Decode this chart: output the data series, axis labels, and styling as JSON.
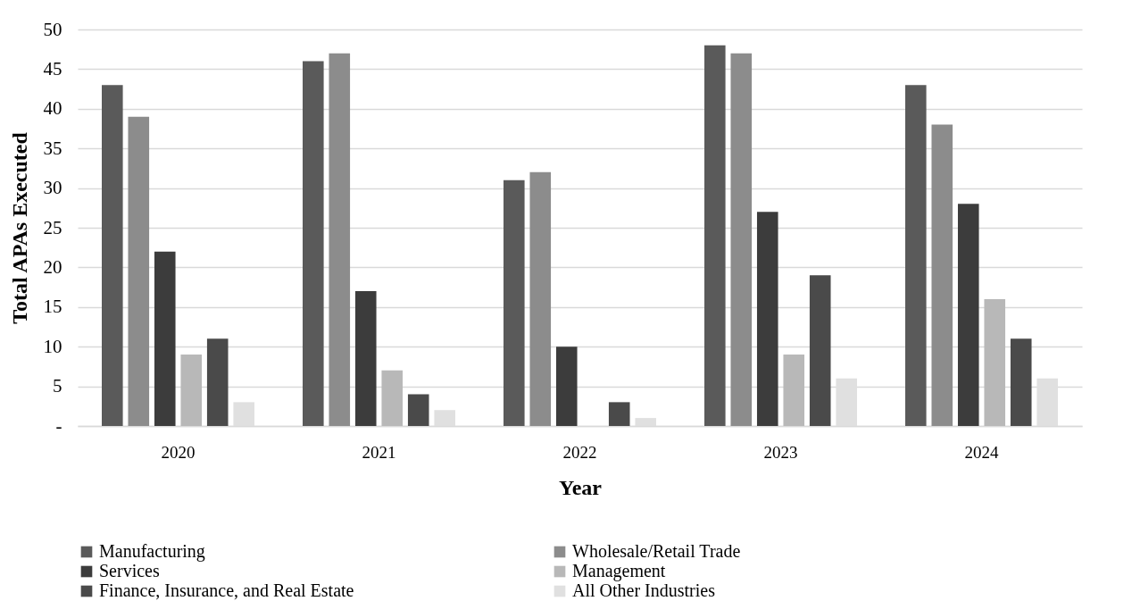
{
  "chart_data": {
    "type": "bar",
    "xlabel": "Year",
    "ylabel": "Total APAs Executed",
    "categories": [
      "2020",
      "2021",
      "2022",
      "2023",
      "2024"
    ],
    "series": [
      {
        "name": "Manufacturing",
        "color": "#5a5a5a",
        "values": [
          43,
          46,
          31,
          48,
          43
        ]
      },
      {
        "name": "Wholesale/Retail Trade",
        "color": "#8c8c8c",
        "values": [
          39,
          47,
          32,
          47,
          38
        ]
      },
      {
        "name": "Services",
        "color": "#3c3c3c",
        "values": [
          22,
          17,
          10,
          27,
          28
        ]
      },
      {
        "name": "Management",
        "color": "#b8b8b8",
        "values": [
          9,
          7,
          null,
          9,
          16
        ]
      },
      {
        "name": "Finance, Insurance, and Real Estate",
        "color": "#4a4a4a",
        "values": [
          11,
          4,
          3,
          19,
          11
        ]
      },
      {
        "name": "All Other Industries",
        "color": "#e0e0e0",
        "values": [
          3,
          2,
          1,
          6,
          6
        ]
      }
    ],
    "ylim": [
      0,
      50
    ],
    "yticks": [
      {
        "value": 0,
        "label": "-"
      },
      5,
      10,
      15,
      20,
      25,
      30,
      35,
      40,
      45,
      50
    ],
    "grid": "y",
    "legend": "bottom"
  }
}
